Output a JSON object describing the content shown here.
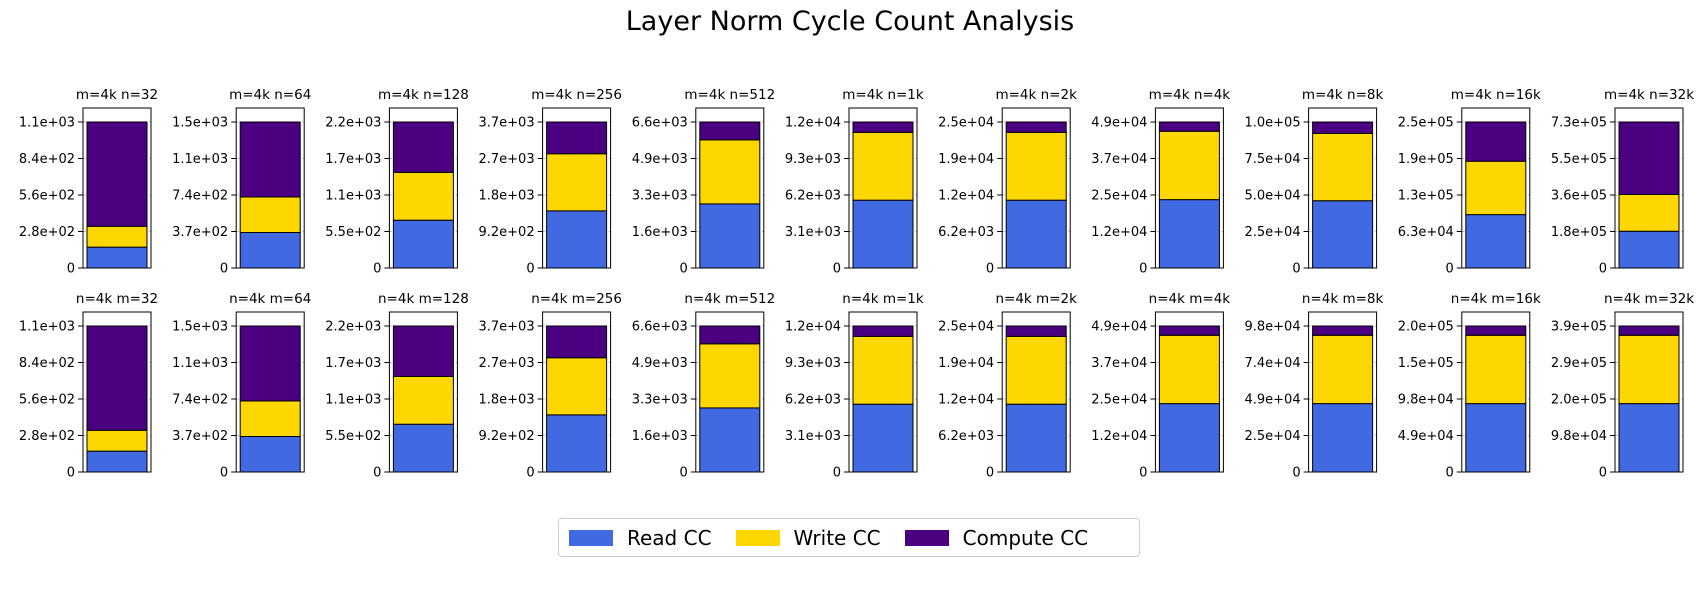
{
  "chart_data": {
    "title": "Layer Norm Cycle Count Analysis",
    "type": "bar",
    "stacking": "stacked",
    "legend": {
      "placement": "bottom-center",
      "entries": [
        {
          "name": "Read CC",
          "color": "#4169E1"
        },
        {
          "name": "Write CC",
          "color": "#FFD700"
        },
        {
          "name": "Compute CC",
          "color": "#4B0082"
        }
      ]
    },
    "grid": "horizontal dashed",
    "series_names": [
      "Read CC",
      "Write CC",
      "Compute CC"
    ],
    "subplots": [
      {
        "title": "m=4k n=32",
        "yticks": [
          "0",
          "2.8e+02",
          "5.6e+02",
          "8.4e+02",
          "1.1e+03"
        ],
        "ymax": 1120,
        "values": [
          160,
          160,
          800
        ]
      },
      {
        "title": "m=4k n=64",
        "yticks": [
          "0",
          "3.7e+02",
          "7.4e+02",
          "1.1e+03",
          "1.5e+03"
        ],
        "ymax": 1480,
        "values": [
          360,
          360,
          760
        ]
      },
      {
        "title": "m=4k n=128",
        "yticks": [
          "0",
          "5.5e+02",
          "1.1e+03",
          "1.7e+03",
          "2.2e+03"
        ],
        "ymax": 2200,
        "values": [
          720,
          720,
          760
        ]
      },
      {
        "title": "m=4k n=256",
        "yticks": [
          "0",
          "9.2e+02",
          "1.8e+03",
          "2.7e+03",
          "3.7e+03"
        ],
        "ymax": 3680,
        "values": [
          1440,
          1440,
          800
        ]
      },
      {
        "title": "m=4k n=512",
        "yticks": [
          "0",
          "1.6e+03",
          "3.3e+03",
          "4.9e+03",
          "6.6e+03"
        ],
        "ymax": 6560,
        "values": [
          2880,
          2880,
          800
        ]
      },
      {
        "title": "m=4k n=1k",
        "yticks": [
          "0",
          "3.1e+03",
          "6.2e+03",
          "9.3e+03",
          "1.2e+04"
        ],
        "ymax": 12400,
        "values": [
          5760,
          5760,
          880
        ]
      },
      {
        "title": "m=4k n=2k",
        "yticks": [
          "0",
          "6.2e+03",
          "1.2e+04",
          "1.9e+04",
          "2.5e+04"
        ],
        "ymax": 24800,
        "values": [
          11520,
          11520,
          1760
        ]
      },
      {
        "title": "m=4k n=4k",
        "yticks": [
          "0",
          "1.2e+04",
          "2.5e+04",
          "3.7e+04",
          "4.9e+04"
        ],
        "ymax": 49200,
        "values": [
          23040,
          23040,
          3120
        ]
      },
      {
        "title": "m=4k n=8k",
        "yticks": [
          "0",
          "2.5e+04",
          "5.0e+04",
          "7.5e+04",
          "1.0e+05"
        ],
        "ymax": 100000,
        "values": [
          46080,
          46080,
          7840
        ]
      },
      {
        "title": "m=4k n=16k",
        "yticks": [
          "0",
          "6.3e+04",
          "1.3e+05",
          "1.9e+05",
          "2.5e+05"
        ],
        "ymax": 252000,
        "values": [
          92160,
          92160,
          67680
        ]
      },
      {
        "title": "m=4k n=32k",
        "yticks": [
          "0",
          "1.8e+05",
          "3.6e+05",
          "5.5e+05",
          "7.3e+05"
        ],
        "ymax": 732000,
        "values": [
          184320,
          184320,
          363360
        ]
      },
      {
        "title": "n=4k m=32",
        "yticks": [
          "0",
          "2.8e+02",
          "5.6e+02",
          "8.4e+02",
          "1.1e+03"
        ],
        "ymax": 1120,
        "values": [
          160,
          160,
          800
        ]
      },
      {
        "title": "n=4k m=64",
        "yticks": [
          "0",
          "3.7e+02",
          "7.4e+02",
          "1.1e+03",
          "1.5e+03"
        ],
        "ymax": 1480,
        "values": [
          360,
          360,
          760
        ]
      },
      {
        "title": "n=4k m=128",
        "yticks": [
          "0",
          "5.5e+02",
          "1.1e+03",
          "1.7e+03",
          "2.2e+03"
        ],
        "ymax": 2200,
        "values": [
          720,
          720,
          760
        ]
      },
      {
        "title": "n=4k m=256",
        "yticks": [
          "0",
          "9.2e+02",
          "1.8e+03",
          "2.7e+03",
          "3.7e+03"
        ],
        "ymax": 3680,
        "values": [
          1440,
          1440,
          800
        ]
      },
      {
        "title": "n=4k m=512",
        "yticks": [
          "0",
          "1.6e+03",
          "3.3e+03",
          "4.9e+03",
          "6.6e+03"
        ],
        "ymax": 6560,
        "values": [
          2880,
          2880,
          800
        ]
      },
      {
        "title": "n=4k m=1k",
        "yticks": [
          "0",
          "3.1e+03",
          "6.2e+03",
          "9.3e+03",
          "1.2e+04"
        ],
        "ymax": 12400,
        "values": [
          5760,
          5760,
          880
        ]
      },
      {
        "title": "n=4k m=2k",
        "yticks": [
          "0",
          "6.2e+03",
          "1.2e+04",
          "1.9e+04",
          "2.5e+04"
        ],
        "ymax": 24800,
        "values": [
          11520,
          11520,
          1760
        ]
      },
      {
        "title": "n=4k m=4k",
        "yticks": [
          "0",
          "1.2e+04",
          "2.5e+04",
          "3.7e+04",
          "4.9e+04"
        ],
        "ymax": 49200,
        "values": [
          23040,
          23040,
          3120
        ]
      },
      {
        "title": "n=4k m=8k",
        "yticks": [
          "0",
          "2.5e+04",
          "4.9e+04",
          "7.4e+04",
          "9.8e+04"
        ],
        "ymax": 98400,
        "values": [
          46080,
          46080,
          6240
        ]
      },
      {
        "title": "n=4k m=16k",
        "yticks": [
          "0",
          "4.9e+04",
          "9.8e+04",
          "1.5e+05",
          "2.0e+05"
        ],
        "ymax": 196800,
        "values": [
          92160,
          92160,
          12480
        ]
      },
      {
        "title": "n=4k m=32k",
        "yticks": [
          "0",
          "9.8e+04",
          "2.0e+05",
          "2.9e+05",
          "3.9e+05"
        ],
        "ymax": 393600,
        "values": [
          184320,
          184320,
          24960
        ]
      }
    ]
  }
}
